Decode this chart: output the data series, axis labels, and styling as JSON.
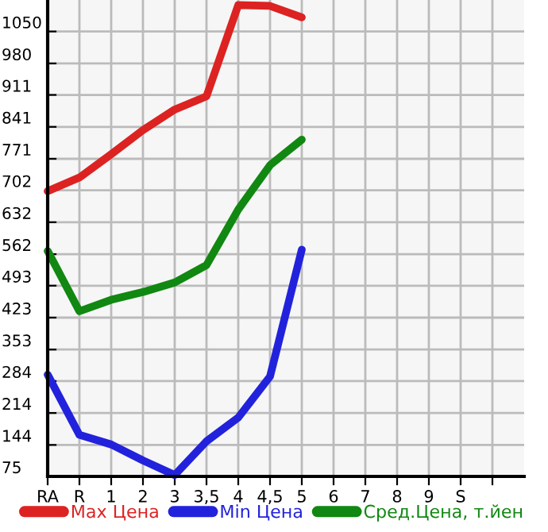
{
  "chart_data": {
    "type": "line",
    "categories": [
      "RA",
      "R",
      "1",
      "2",
      "3",
      "3,5",
      "4",
      "4,5",
      "5",
      "6",
      "7",
      "8",
      "9",
      "S",
      null
    ],
    "series": [
      {
        "name": "Max Цена",
        "color": "#dd2222",
        "values": [
          700,
          730,
          781,
          834,
          879,
          908,
          1108,
          1106,
          1081,
          null,
          null,
          null,
          null,
          null,
          null
        ]
      },
      {
        "name": "Min Цена",
        "color": "#2222dd",
        "values": [
          298,
          166,
          145,
          110,
          78,
          152,
          204,
          294,
          572,
          null,
          null,
          null,
          null,
          null,
          null
        ]
      },
      {
        "name": "Сред.Цена, т.йен",
        "color": "#118811",
        "values": [
          569,
          437,
          462,
          479,
          500,
          538,
          660,
          757,
          813,
          null,
          null,
          null,
          null,
          null,
          null
        ]
      }
    ],
    "ylim": [
      75,
      1119
    ],
    "yticks": [
      75,
      144,
      214,
      284,
      353,
      423,
      493,
      562,
      632,
      702,
      771,
      841,
      911,
      980,
      1050
    ],
    "grid": true,
    "legend": "bottom",
    "marker": "none",
    "line_style": "solid"
  }
}
